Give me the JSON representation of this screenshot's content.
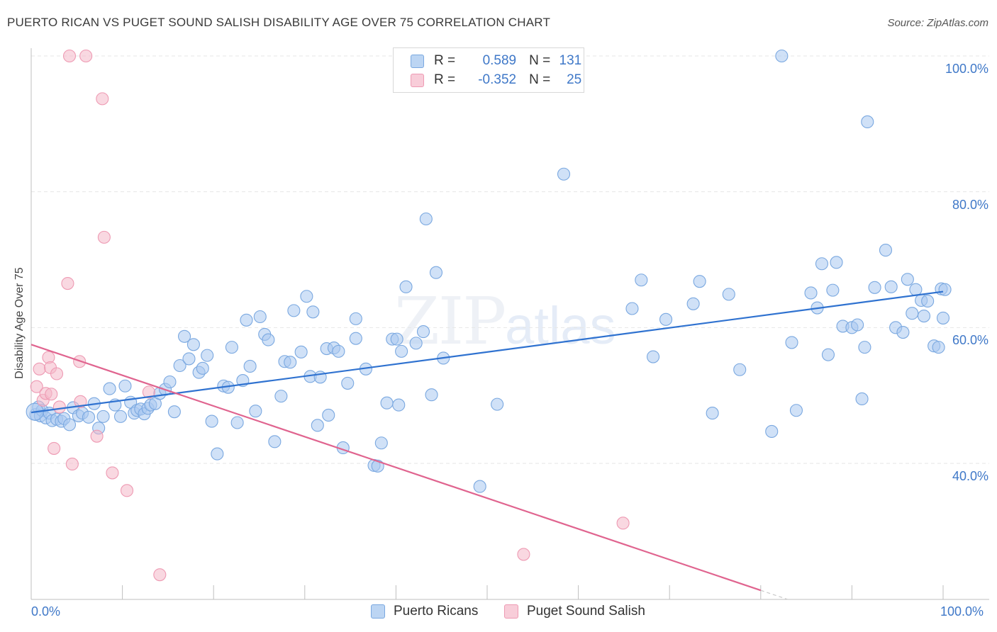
{
  "header": {
    "title": "PUERTO RICAN VS PUGET SOUND SALISH DISABILITY AGE OVER 75 CORRELATION CHART",
    "source": "Source: ZipAtlas.com"
  },
  "watermark": {
    "zip": "ZIP",
    "atlas": "atlas"
  },
  "legend": {
    "rows": [
      {
        "r_label": "R =",
        "r_value": "0.589",
        "n_label": "N =",
        "n_value": "131",
        "color": "#a9c8f0"
      },
      {
        "r_label": "R =",
        "r_value": "-0.352",
        "n_label": "N =",
        "n_value": "25",
        "color": "#f4b8c9"
      }
    ]
  },
  "bottom_legend": {
    "series1": "Puerto Ricans",
    "series2": "Puget Sound Salish"
  },
  "colors": {
    "blue_fill": "#a9c8f0",
    "blue_stroke": "#7aa8e0",
    "blue_line": "#2f72d0",
    "pink_fill": "#f4b8c9",
    "pink_stroke": "#ee9ab3",
    "pink_line": "#e0648f",
    "grid": "#e6e6e6",
    "tick_text": "#3f78c8"
  },
  "chart_data": {
    "type": "scatter",
    "title": "PUERTO RICAN VS PUGET SOUND SALISH DISABILITY AGE OVER 75 CORRELATION CHART",
    "xlabel": "",
    "ylabel": "Disability Age Over 75",
    "xlim": [
      0,
      100
    ],
    "ylim": [
      20,
      102
    ],
    "x_ticks": [
      "0.0%",
      "100.0%"
    ],
    "y_ticks": [
      {
        "value": 40,
        "label": "40.0%"
      },
      {
        "value": 60,
        "label": "60.0%"
      },
      {
        "value": 80,
        "label": "80.0%"
      },
      {
        "value": 100,
        "label": "100.0%"
      }
    ],
    "grid": true,
    "legend_position": "top-center",
    "series": [
      {
        "name": "Puerto Ricans",
        "r": 0.589,
        "n": 131,
        "trend": {
          "x": [
            0,
            100
          ],
          "y": [
            47.5,
            65.3
          ]
        },
        "points": [
          [
            0.5,
            47.2
          ],
          [
            0.8,
            48.3
          ],
          [
            1.0,
            47.0
          ],
          [
            1.2,
            47.8
          ],
          [
            1.6,
            46.7
          ],
          [
            2.0,
            47.4
          ],
          [
            2.3,
            46.3
          ],
          [
            2.8,
            46.5
          ],
          [
            3.3,
            46.2
          ],
          [
            3.6,
            46.6
          ],
          [
            4.2,
            45.7
          ],
          [
            4.6,
            48.2
          ],
          [
            5.2,
            47.0
          ],
          [
            5.6,
            47.4
          ],
          [
            6.3,
            46.8
          ],
          [
            6.9,
            48.8
          ],
          [
            7.4,
            45.2
          ],
          [
            7.9,
            46.9
          ],
          [
            8.6,
            51.0
          ],
          [
            9.2,
            48.6
          ],
          [
            9.8,
            46.9
          ],
          [
            10.3,
            51.4
          ],
          [
            10.9,
            49.0
          ],
          [
            11.3,
            47.4
          ],
          [
            11.6,
            47.8
          ],
          [
            12.0,
            48.0
          ],
          [
            12.4,
            47.3
          ],
          [
            12.8,
            48.1
          ],
          [
            13.1,
            48.6
          ],
          [
            13.6,
            48.8
          ],
          [
            14.1,
            50.3
          ],
          [
            14.7,
            50.9
          ],
          [
            15.2,
            52.0
          ],
          [
            15.7,
            47.6
          ],
          [
            16.3,
            54.4
          ],
          [
            16.8,
            58.7
          ],
          [
            17.3,
            55.4
          ],
          [
            17.8,
            57.5
          ],
          [
            18.4,
            53.4
          ],
          [
            18.8,
            54.0
          ],
          [
            19.3,
            55.9
          ],
          [
            19.8,
            46.2
          ],
          [
            20.4,
            41.4
          ],
          [
            21.1,
            51.4
          ],
          [
            21.6,
            51.2
          ],
          [
            22.0,
            57.1
          ],
          [
            22.6,
            46.0
          ],
          [
            23.2,
            52.2
          ],
          [
            23.6,
            61.1
          ],
          [
            24.0,
            54.3
          ],
          [
            24.6,
            47.7
          ],
          [
            25.1,
            61.6
          ],
          [
            25.6,
            59.0
          ],
          [
            26.0,
            58.2
          ],
          [
            26.7,
            43.2
          ],
          [
            27.4,
            49.9
          ],
          [
            27.8,
            55.0
          ],
          [
            28.4,
            54.9
          ],
          [
            28.8,
            62.5
          ],
          [
            29.6,
            56.4
          ],
          [
            30.2,
            64.6
          ],
          [
            30.6,
            52.8
          ],
          [
            30.9,
            62.3
          ],
          [
            31.4,
            45.6
          ],
          [
            31.7,
            52.7
          ],
          [
            32.4,
            56.9
          ],
          [
            32.6,
            47.1
          ],
          [
            33.2,
            57.0
          ],
          [
            33.7,
            56.5
          ],
          [
            34.2,
            42.3
          ],
          [
            34.7,
            51.8
          ],
          [
            35.6,
            61.3
          ],
          [
            35.6,
            58.4
          ],
          [
            36.7,
            53.9
          ],
          [
            37.6,
            39.7
          ],
          [
            38.0,
            39.6
          ],
          [
            38.4,
            43.0
          ],
          [
            39.0,
            48.9
          ],
          [
            39.6,
            58.3
          ],
          [
            40.1,
            58.3
          ],
          [
            40.3,
            48.6
          ],
          [
            40.6,
            56.5
          ],
          [
            41.1,
            66.0
          ],
          [
            42.2,
            57.7
          ],
          [
            43.0,
            59.4
          ],
          [
            43.3,
            76.0
          ],
          [
            43.9,
            50.1
          ],
          [
            44.4,
            68.1
          ],
          [
            45.2,
            55.5
          ],
          [
            49.2,
            36.6
          ],
          [
            51.1,
            48.7
          ],
          [
            58.4,
            82.6
          ],
          [
            65.9,
            62.8
          ],
          [
            66.9,
            67.0
          ],
          [
            68.2,
            55.7
          ],
          [
            69.6,
            61.2
          ],
          [
            72.6,
            63.5
          ],
          [
            73.3,
            66.8
          ],
          [
            74.7,
            47.4
          ],
          [
            76.5,
            64.9
          ],
          [
            77.7,
            53.8
          ],
          [
            81.2,
            44.7
          ],
          [
            82.3,
            100.0
          ],
          [
            83.4,
            57.8
          ],
          [
            83.9,
            47.8
          ],
          [
            85.5,
            65.1
          ],
          [
            86.2,
            62.9
          ],
          [
            86.7,
            69.4
          ],
          [
            87.4,
            56.0
          ],
          [
            87.9,
            65.5
          ],
          [
            88.3,
            69.6
          ],
          [
            89.0,
            60.2
          ],
          [
            90.0,
            60.0
          ],
          [
            90.6,
            60.4
          ],
          [
            91.1,
            49.5
          ],
          [
            91.4,
            57.1
          ],
          [
            91.7,
            90.3
          ],
          [
            92.5,
            65.9
          ],
          [
            93.7,
            71.4
          ],
          [
            94.3,
            66.0
          ],
          [
            94.8,
            60.0
          ],
          [
            95.6,
            59.3
          ],
          [
            96.1,
            67.1
          ],
          [
            96.6,
            62.1
          ],
          [
            97.0,
            65.6
          ],
          [
            97.6,
            64.0
          ],
          [
            97.9,
            61.7
          ],
          [
            98.3,
            63.9
          ],
          [
            99.0,
            57.3
          ],
          [
            99.5,
            57.1
          ],
          [
            99.8,
            65.7
          ],
          [
            100.0,
            61.4
          ],
          [
            100.2,
            65.6
          ]
        ]
      },
      {
        "name": "Puget Sound Salish",
        "r": -0.352,
        "n": 25,
        "trend": {
          "x": [
            0,
            80
          ],
          "y": [
            57.5,
            21.3
          ]
        },
        "points": [
          [
            0.6,
            51.3
          ],
          [
            0.9,
            53.9
          ],
          [
            1.3,
            49.3
          ],
          [
            1.6,
            50.3
          ],
          [
            1.9,
            55.6
          ],
          [
            2.1,
            54.1
          ],
          [
            2.2,
            50.2
          ],
          [
            2.5,
            42.2
          ],
          [
            2.8,
            53.2
          ],
          [
            3.1,
            48.3
          ],
          [
            4.0,
            66.5
          ],
          [
            4.2,
            100.0
          ],
          [
            4.5,
            39.9
          ],
          [
            6.0,
            100.0
          ],
          [
            5.3,
            55.0
          ],
          [
            5.4,
            49.1
          ],
          [
            7.2,
            44.0
          ],
          [
            7.8,
            93.7
          ],
          [
            8.0,
            73.3
          ],
          [
            8.9,
            38.6
          ],
          [
            10.5,
            36.0
          ],
          [
            12.9,
            50.5
          ],
          [
            14.1,
            23.6
          ],
          [
            64.9,
            31.2
          ],
          [
            54.0,
            26.6
          ]
        ]
      }
    ]
  }
}
